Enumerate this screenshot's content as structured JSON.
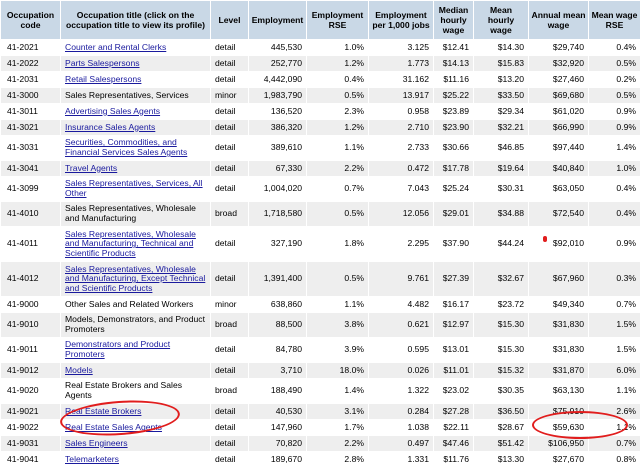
{
  "headers": [
    "Occupation code",
    "Occupation title (click on the occupation title to view its profile)",
    "Level",
    "Employment",
    "Employment RSE",
    "Employment per 1,000 jobs",
    "Median hourly wage",
    "Mean hourly wage",
    "Annual mean wage",
    "Mean wage RSE"
  ],
  "rows": [
    {
      "code": "41-2021",
      "title": "Counter and Rental Clerks",
      "link": true,
      "level": "detail",
      "emp": "445,530",
      "emp_rse": "1.0%",
      "per1000": "3.125",
      "median": "$12.41",
      "mean_hr": "$14.30",
      "annual": "$29,740",
      "wage_rse": "0.4%"
    },
    {
      "code": "41-2022",
      "title": "Parts Salespersons",
      "link": true,
      "level": "detail",
      "emp": "252,770",
      "emp_rse": "1.2%",
      "per1000": "1.773",
      "median": "$14.13",
      "mean_hr": "$15.83",
      "annual": "$32,920",
      "wage_rse": "0.5%"
    },
    {
      "code": "41-2031",
      "title": "Retail Salespersons",
      "link": true,
      "level": "detail",
      "emp": "4,442,090",
      "emp_rse": "0.4%",
      "per1000": "31.162",
      "median": "$11.16",
      "mean_hr": "$13.20",
      "annual": "$27,460",
      "wage_rse": "0.2%"
    },
    {
      "code": "41-3000",
      "title": "Sales Representatives, Services",
      "link": false,
      "level": "minor",
      "emp": "1,983,790",
      "emp_rse": "0.5%",
      "per1000": "13.917",
      "median": "$25.22",
      "mean_hr": "$33.50",
      "annual": "$69,680",
      "wage_rse": "0.5%"
    },
    {
      "code": "41-3011",
      "title": "Advertising Sales Agents",
      "link": true,
      "level": "detail",
      "emp": "136,520",
      "emp_rse": "2.3%",
      "per1000": "0.958",
      "median": "$23.89",
      "mean_hr": "$29.34",
      "annual": "$61,020",
      "wage_rse": "0.9%"
    },
    {
      "code": "41-3021",
      "title": "Insurance Sales Agents",
      "link": true,
      "level": "detail",
      "emp": "386,320",
      "emp_rse": "1.2%",
      "per1000": "2.710",
      "median": "$23.90",
      "mean_hr": "$32.21",
      "annual": "$66,990",
      "wage_rse": "0.9%"
    },
    {
      "code": "41-3031",
      "title": "Securities, Commodities, and Financial Services Sales Agents",
      "link": true,
      "level": "detail",
      "emp": "389,610",
      "emp_rse": "1.1%",
      "per1000": "2.733",
      "median": "$30.66",
      "mean_hr": "$46.85",
      "annual": "$97,440",
      "wage_rse": "1.4%"
    },
    {
      "code": "41-3041",
      "title": "Travel Agents",
      "link": true,
      "level": "detail",
      "emp": "67,330",
      "emp_rse": "2.2%",
      "per1000": "0.472",
      "median": "$17.78",
      "mean_hr": "$19.64",
      "annual": "$40,840",
      "wage_rse": "1.0%"
    },
    {
      "code": "41-3099",
      "title": "Sales Representatives, Services, All Other",
      "link": true,
      "level": "detail",
      "emp": "1,004,020",
      "emp_rse": "0.7%",
      "per1000": "7.043",
      "median": "$25.24",
      "mean_hr": "$30.31",
      "annual": "$63,050",
      "wage_rse": "0.4%"
    },
    {
      "code": "41-4010",
      "title": "Sales Representatives, Wholesale and Manufacturing",
      "link": false,
      "level": "broad",
      "emp": "1,718,580",
      "emp_rse": "0.5%",
      "per1000": "12.056",
      "median": "$29.01",
      "mean_hr": "$34.88",
      "annual": "$72,540",
      "wage_rse": "0.4%"
    },
    {
      "code": "41-4011",
      "title": "Sales Representatives, Wholesale and Manufacturing, Technical and Scientific Products",
      "link": true,
      "level": "detail",
      "emp": "327,190",
      "emp_rse": "1.8%",
      "per1000": "2.295",
      "median": "$37.90",
      "mean_hr": "$44.24",
      "annual": "$92,010",
      "wage_rse": "0.9%"
    },
    {
      "code": "41-4012",
      "title": "Sales Representatives, Wholesale and Manufacturing, Except Technical and Scientific Products",
      "link": true,
      "level": "detail",
      "emp": "1,391,400",
      "emp_rse": "0.5%",
      "per1000": "9.761",
      "median": "$27.39",
      "mean_hr": "$32.67",
      "annual": "$67,960",
      "wage_rse": "0.3%"
    },
    {
      "code": "41-9000",
      "title": "Other Sales and Related Workers",
      "link": false,
      "level": "minor",
      "emp": "638,860",
      "emp_rse": "1.1%",
      "per1000": "4.482",
      "median": "$16.17",
      "mean_hr": "$23.72",
      "annual": "$49,340",
      "wage_rse": "0.7%"
    },
    {
      "code": "41-9010",
      "title": "Models, Demonstrators, and Product Promoters",
      "link": false,
      "level": "broad",
      "emp": "88,500",
      "emp_rse": "3.8%",
      "per1000": "0.621",
      "median": "$12.97",
      "mean_hr": "$15.30",
      "annual": "$31,830",
      "wage_rse": "1.5%"
    },
    {
      "code": "41-9011",
      "title": "Demonstrators and Product Promoters",
      "link": true,
      "level": "detail",
      "emp": "84,780",
      "emp_rse": "3.9%",
      "per1000": "0.595",
      "median": "$13.01",
      "mean_hr": "$15.30",
      "annual": "$31,830",
      "wage_rse": "1.5%"
    },
    {
      "code": "41-9012",
      "title": "Models",
      "link": true,
      "level": "detail",
      "emp": "3,710",
      "emp_rse": "18.0%",
      "per1000": "0.026",
      "median": "$11.01",
      "mean_hr": "$15.32",
      "annual": "$31,870",
      "wage_rse": "6.0%"
    },
    {
      "code": "41-9020",
      "title": "Real Estate Brokers and Sales Agents",
      "link": false,
      "level": "broad",
      "emp": "188,490",
      "emp_rse": "1.4%",
      "per1000": "1.322",
      "median": "$23.02",
      "mean_hr": "$30.35",
      "annual": "$63,130",
      "wage_rse": "1.1%"
    },
    {
      "code": "41-9021",
      "title": "Real Estate Brokers",
      "link": true,
      "level": "detail",
      "emp": "40,530",
      "emp_rse": "3.1%",
      "per1000": "0.284",
      "median": "$27.28",
      "mean_hr": "$36.50",
      "annual": "$75,910",
      "wage_rse": "2.6%"
    },
    {
      "code": "41-9022",
      "title": "Real Estate Sales Agents",
      "link": true,
      "level": "detail",
      "emp": "147,960",
      "emp_rse": "1.7%",
      "per1000": "1.038",
      "median": "$22.11",
      "mean_hr": "$28.67",
      "annual": "$59,630",
      "wage_rse": "1.1%"
    },
    {
      "code": "41-9031",
      "title": "Sales Engineers",
      "link": true,
      "level": "detail",
      "emp": "70,820",
      "emp_rse": "2.2%",
      "per1000": "0.497",
      "median": "$47.46",
      "mean_hr": "$51.42",
      "annual": "$106,950",
      "wage_rse": "0.7%"
    },
    {
      "code": "41-9041",
      "title": "Telemarketers",
      "link": true,
      "level": "detail",
      "emp": "189,670",
      "emp_rse": "2.8%",
      "per1000": "1.331",
      "median": "$11.76",
      "mean_hr": "$13.30",
      "annual": "$27,670",
      "wage_rse": "0.8%"
    }
  ],
  "annotation_color": "#e11d1d"
}
